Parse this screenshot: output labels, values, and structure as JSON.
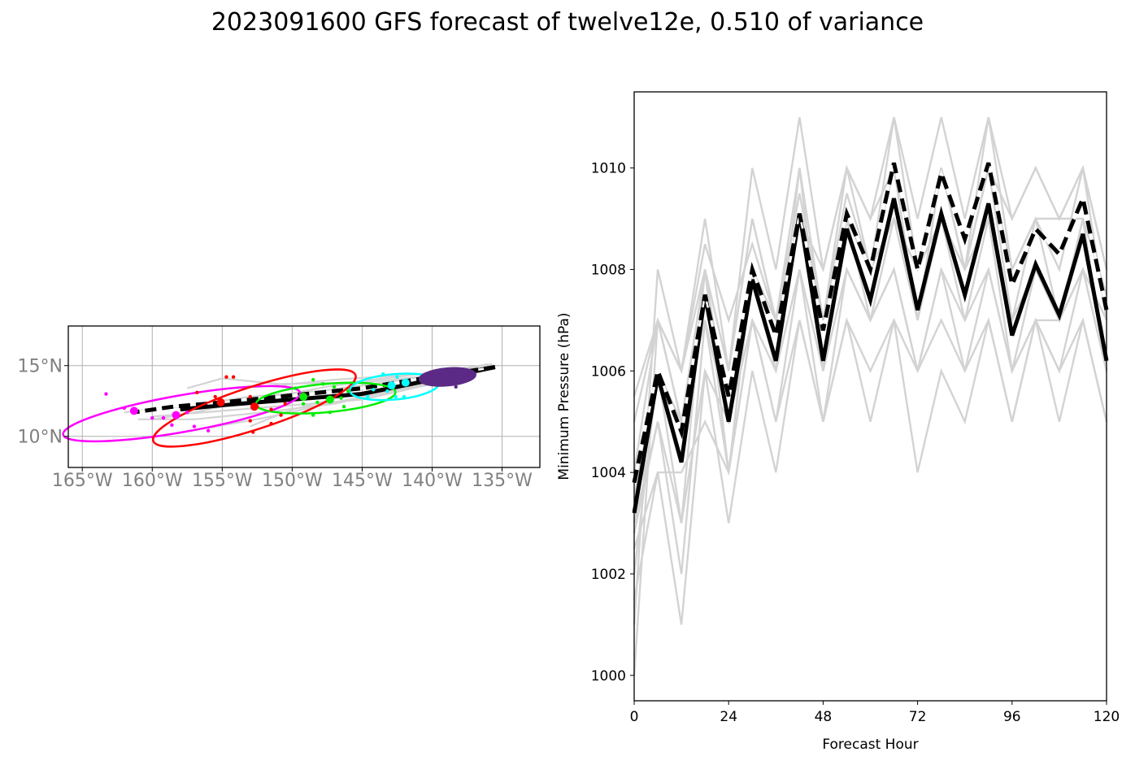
{
  "figure": {
    "title": "2023091600 GFS forecast of twelve12e, 0.510 of variance"
  },
  "colors": {
    "member": "#d3d3d3",
    "ensemble_mean": "#000000",
    "deterministic": "#000000",
    "ellipses": [
      "#ff00ff",
      "#ff0000",
      "#00ee00",
      "#00ffff",
      "#5b2a86"
    ]
  },
  "chart_data": [
    {
      "type": "scatter",
      "name": "track-map",
      "title": "",
      "xlabel": "",
      "ylabel": "",
      "xlim": [
        -166,
        -132.3
      ],
      "ylim": [
        7.8,
        17.8
      ],
      "grid": true,
      "x_ticks": [
        {
          "value": -165,
          "label": "165°W"
        },
        {
          "value": -160,
          "label": "160°W"
        },
        {
          "value": -155,
          "label": "155°W"
        },
        {
          "value": -150,
          "label": "150°W"
        },
        {
          "value": -145,
          "label": "145°W"
        },
        {
          "value": -140,
          "label": "140°W"
        },
        {
          "value": -135,
          "label": "135°W"
        }
      ],
      "y_ticks": [
        {
          "value": 15,
          "label": "15°N"
        },
        {
          "value": 10,
          "label": "10°N"
        }
      ],
      "ensemble_mean_track": [
        [
          -135.5,
          14.9
        ],
        [
          -140,
          14.0
        ],
        [
          -145,
          13.0
        ],
        [
          -150,
          12.6
        ],
        [
          -155,
          12.2
        ],
        [
          -158,
          11.9
        ]
      ],
      "deterministic_track": [
        [
          -135.5,
          14.9
        ],
        [
          -140,
          14.2
        ],
        [
          -145,
          13.4
        ],
        [
          -150,
          12.9
        ],
        [
          -155,
          12.4
        ],
        [
          -158.5,
          12.1
        ],
        [
          -161.3,
          11.7
        ]
      ],
      "member_tracks": [
        [
          [
            -135.5,
            15.0
          ],
          [
            -141,
            14.2
          ],
          [
            -147,
            13.6
          ],
          [
            -153,
            12.5
          ],
          [
            -158,
            11.5
          ],
          [
            -160,
            11.2
          ]
        ],
        [
          [
            -135.5,
            14.9
          ],
          [
            -140,
            13.8
          ],
          [
            -146,
            12.6
          ],
          [
            -152,
            11.3
          ],
          [
            -156,
            10.6
          ]
        ],
        [
          [
            -135.7,
            15.1
          ],
          [
            -140,
            14.5
          ],
          [
            -146,
            13.8
          ],
          [
            -151,
            13.7
          ],
          [
            -155,
            14.1
          ],
          [
            -157.5,
            13.4
          ]
        ],
        [
          [
            -135.5,
            14.8
          ],
          [
            -141,
            13.6
          ],
          [
            -147,
            12.3
          ],
          [
            -152,
            11.7
          ],
          [
            -157,
            11.2
          ],
          [
            -161,
            11.2
          ]
        ],
        [
          [
            -136,
            15.1
          ],
          [
            -142,
            14.0
          ],
          [
            -148,
            13.2
          ],
          [
            -153,
            12.8
          ],
          [
            -158,
            12.1
          ],
          [
            -162,
            11.7
          ]
        ],
        [
          [
            -135.5,
            14.9
          ],
          [
            -141,
            13.9
          ],
          [
            -146,
            12.9
          ],
          [
            -150,
            11.9
          ],
          [
            -153,
            10.7
          ]
        ],
        [
          [
            -135.8,
            15.0
          ],
          [
            -141,
            14.4
          ],
          [
            -147,
            14.0
          ],
          [
            -151,
            13.6
          ],
          [
            -154,
            13.4
          ]
        ],
        [
          [
            -135.5,
            14.8
          ],
          [
            -140,
            13.7
          ],
          [
            -145,
            12.6
          ],
          [
            -150,
            12.2
          ],
          [
            -155,
            11.8
          ],
          [
            -160,
            11.4
          ]
        ]
      ],
      "ellipses": [
        {
          "color": "#ff00ff",
          "cx": -157.9,
          "cy": 11.6,
          "rx": 8.6,
          "ry": 1.3,
          "angle": 10
        },
        {
          "color": "#ff0000",
          "cx": -152.7,
          "cy": 12.0,
          "rx": 7.6,
          "ry": 1.5,
          "angle": 18
        },
        {
          "color": "#00ee00",
          "cx": -147.6,
          "cy": 12.7,
          "rx": 5.0,
          "ry": 1.0,
          "angle": 5
        },
        {
          "color": "#00ffff",
          "cx": -142.7,
          "cy": 13.5,
          "rx": 3.2,
          "ry": 0.9,
          "angle": 5
        },
        {
          "color": "#5b2a86",
          "cx": -138.9,
          "cy": 14.2,
          "rx": 2.0,
          "ry": 0.6,
          "angle": 5,
          "filled": true
        }
      ],
      "points": [
        {
          "color": "#ff00ff",
          "xy": [
            [
              -163.3,
              13.0
            ],
            [
              -162,
              12.0
            ],
            [
              -160,
              11.3
            ],
            [
              -159.2,
              11.3
            ],
            [
              -158.6,
              10.8
            ],
            [
              -157,
              10.7
            ],
            [
              -156,
              10.4
            ],
            [
              -158.4,
              11.5
            ],
            [
              -157.5,
              11.7
            ],
            [
              -161.3,
              11.7
            ]
          ],
          "big": [
            [
              -161.3,
              11.8
            ],
            [
              -158.3,
              11.5
            ]
          ]
        },
        {
          "color": "#ff0000",
          "xy": [
            [
              -154.7,
              14.2
            ],
            [
              -154.2,
              14.2
            ],
            [
              -155.5,
              12.8
            ],
            [
              -153,
              12.8
            ],
            [
              -152.5,
              12.1
            ],
            [
              -151.5,
              11.9
            ],
            [
              -153,
              11.1
            ],
            [
              -152.8,
              10.3
            ],
            [
              -151.5,
              10.9
            ],
            [
              -150.8,
              11.5
            ],
            [
              -150.5,
              12.3
            ],
            [
              -156.8,
              13.1
            ]
          ],
          "big": [
            [
              -155.1,
              12.4
            ],
            [
              -152.7,
              12.1
            ]
          ]
        },
        {
          "color": "#00ee00",
          "xy": [
            [
              -149.8,
              13.4
            ],
            [
              -148.5,
              14.0
            ],
            [
              -147.8,
              13.7
            ],
            [
              -147,
              13.5
            ],
            [
              -146.5,
              12.7
            ],
            [
              -146.3,
              12.1
            ],
            [
              -147.3,
              11.7
            ],
            [
              -148.5,
              11.5
            ],
            [
              -149.2,
              12.3
            ],
            [
              -148.2,
              12.4
            ],
            [
              -146,
              13.2
            ]
          ],
          "big": [
            [
              -149.2,
              12.8
            ],
            [
              -147.3,
              12.6
            ]
          ]
        },
        {
          "color": "#00ffff",
          "xy": [
            [
              -143.5,
              14.4
            ],
            [
              -142.5,
              14.2
            ],
            [
              -141.8,
              13.8
            ],
            [
              -142.6,
              12.8
            ],
            [
              -144.6,
              12.8
            ],
            [
              -142,
              12.8
            ],
            [
              -143.2,
              13.2
            ],
            [
              -144.2,
              13.3
            ]
          ],
          "big": [
            [
              -142.9,
              13.6
            ],
            [
              -141.9,
              13.8
            ]
          ]
        },
        {
          "color": "#5b2a86",
          "xy": [
            [
              -138.3,
              13.5
            ],
            [
              -137.7,
              14.0
            ],
            [
              -138.8,
              14.6
            ]
          ],
          "big": [
            [
              -139,
              14.3
            ]
          ]
        }
      ]
    },
    {
      "type": "line",
      "name": "pressure",
      "title": "",
      "xlabel": "Forecast Hour",
      "ylabel": "Minimum Pressure (hPa)",
      "xlim": [
        0,
        120
      ],
      "ylim": [
        999.5,
        1011.5
      ],
      "x_ticks": [
        0,
        24,
        48,
        72,
        96,
        120
      ],
      "y_ticks": [
        1000,
        1002,
        1004,
        1006,
        1008,
        1010
      ],
      "x": [
        0,
        6,
        12,
        18,
        24,
        30,
        36,
        42,
        48,
        54,
        60,
        66,
        72,
        78,
        84,
        90,
        96,
        102,
        108,
        114,
        120
      ],
      "series": [
        {
          "role": "deterministic",
          "values": [
            1003.8,
            1006.0,
            1004.8,
            1007.5,
            1005.5,
            1008.0,
            1006.7,
            1009.1,
            1006.8,
            1009.1,
            1008.0,
            1010.1,
            1008.0,
            1009.9,
            1008.6,
            1010.1,
            1007.7,
            1008.8,
            1008.3,
            1009.4,
            1007.2
          ]
        },
        {
          "role": "ensemble_mean",
          "values": [
            1003.2,
            1005.9,
            1004.2,
            1007.5,
            1005.0,
            1007.8,
            1006.2,
            1009.1,
            1006.2,
            1008.8,
            1007.4,
            1009.4,
            1007.2,
            1009.1,
            1007.5,
            1009.3,
            1006.7,
            1008.1,
            1007.1,
            1008.7,
            1006.2
          ]
        },
        {
          "role": "member",
          "values": [
            1001.0,
            1008.0,
            1006.0,
            1009.0,
            1006.0,
            1010.0,
            1008.0,
            1011.0,
            1008.0,
            1010.0,
            1009.0,
            1011.0,
            1009.0,
            1011.0,
            1009.0,
            1011.0,
            1009.0,
            1010.0,
            1009.0,
            1010.0,
            1008.0
          ]
        },
        {
          "role": "member",
          "values": [
            1000.0,
            1007.0,
            1005.0,
            1008.0,
            1006.0,
            1009.0,
            1007.0,
            1010.0,
            1007.0,
            1010.0,
            1008.0,
            1011.0,
            1008.0,
            1010.0,
            1008.0,
            1011.0,
            1008.0,
            1009.0,
            1008.0,
            1010.0,
            1007.0
          ]
        },
        {
          "role": "member",
          "values": [
            1002.0,
            1006.0,
            1003.0,
            1008.0,
            1004.0,
            1008.0,
            1006.0,
            1010.0,
            1006.0,
            1009.0,
            1008.0,
            1010.0,
            1007.0,
            1010.0,
            1008.0,
            1010.0,
            1007.0,
            1009.0,
            1007.0,
            1009.0,
            1006.0
          ]
        },
        {
          "role": "member",
          "values": [
            1004.0,
            1007.0,
            1005.0,
            1008.0,
            1005.0,
            1008.0,
            1007.0,
            1009.0,
            1007.0,
            1009.0,
            1008.0,
            1009.0,
            1008.0,
            1009.0,
            1008.0,
            1009.0,
            1007.0,
            1008.0,
            1007.0,
            1008.0,
            1007.0
          ]
        },
        {
          "role": "member",
          "values": [
            1003.0,
            1005.0,
            1002.0,
            1007.0,
            1004.0,
            1007.0,
            1005.0,
            1008.0,
            1006.0,
            1008.0,
            1007.0,
            1008.0,
            1006.0,
            1008.0,
            1006.0,
            1008.0,
            1006.0,
            1007.0,
            1006.0,
            1008.0,
            1006.0
          ]
        },
        {
          "role": "member",
          "values": [
            1002.5,
            1004.0,
            1001.0,
            1006.0,
            1003.0,
            1006.0,
            1004.0,
            1007.0,
            1005.0,
            1007.0,
            1005.0,
            1007.0,
            1004.0,
            1006.0,
            1005.0,
            1007.0,
            1005.0,
            1007.0,
            1005.0,
            1007.0,
            1005.0
          ]
        },
        {
          "role": "member",
          "values": [
            1005.0,
            1007.0,
            1006.0,
            1008.0,
            1006.0,
            1009.0,
            1007.0,
            1009.0,
            1008.0,
            1010.0,
            1009.0,
            1010.0,
            1008.0,
            1010.0,
            1008.0,
            1010.0,
            1009.0,
            1010.0,
            1009.0,
            1010.0,
            1008.0
          ]
        },
        {
          "role": "member",
          "values": [
            1001.5,
            1004.0,
            1004.0,
            1005.0,
            1004.0,
            1007.0,
            1005.0,
            1007.0,
            1005.0,
            1007.0,
            1006.0,
            1007.0,
            1006.0,
            1007.0,
            1006.0,
            1007.0,
            1005.0,
            1007.0,
            1006.0,
            1007.0,
            1005.0
          ]
        },
        {
          "role": "member",
          "values": [
            1003.5,
            1006.0,
            1005.0,
            1007.0,
            1005.0,
            1008.0,
            1006.0,
            1009.0,
            1006.0,
            1009.0,
            1007.0,
            1009.0,
            1007.0,
            1009.0,
            1007.0,
            1009.0,
            1006.0,
            1008.0,
            1007.0,
            1009.0,
            1006.0
          ]
        },
        {
          "role": "member",
          "values": [
            1002.8,
            1005.0,
            1003.0,
            1006.0,
            1005.0,
            1007.0,
            1006.0,
            1008.0,
            1005.0,
            1008.0,
            1007.0,
            1008.0,
            1006.0,
            1008.0,
            1007.0,
            1008.0,
            1006.0,
            1007.0,
            1007.0,
            1008.0,
            1006.0
          ]
        },
        {
          "role": "member",
          "values": [
            1005.5,
            1007.0,
            1006.0,
            1008.5,
            1007.0,
            1008.5,
            1007.0,
            1009.5,
            1007.0,
            1009.5,
            1008.0,
            1010.0,
            1008.0,
            1010.0,
            1008.0,
            1010.0,
            1008.0,
            1009.0,
            1009.0,
            1009.0,
            1007.5
          ]
        }
      ]
    }
  ]
}
